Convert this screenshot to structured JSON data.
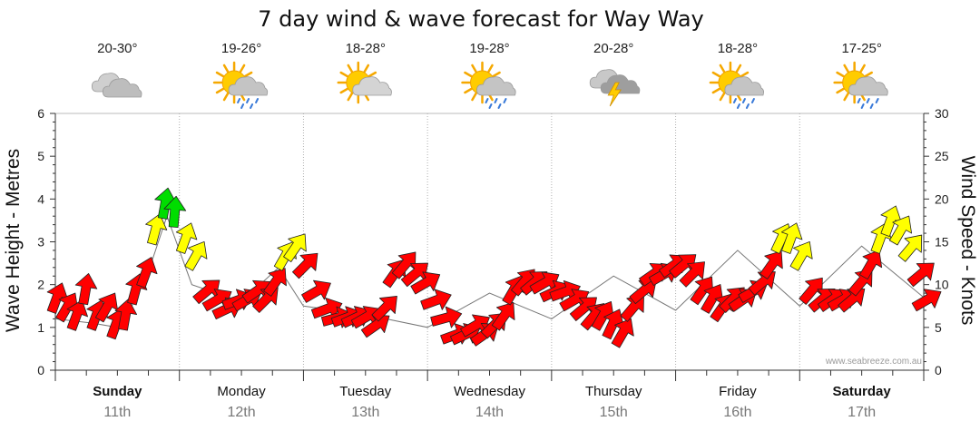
{
  "chart_data": {
    "type": "line",
    "title": "7 day wind & wave forecast for Way Way",
    "ylabel_left": "Wave Height - Metres",
    "ylabel_right": "Wind Speed - Knots",
    "ylim_left": [
      0,
      6
    ],
    "ylim_right": [
      0,
      30
    ],
    "yticks_left": [
      "0",
      "1",
      "2",
      "3",
      "4",
      "5",
      "6"
    ],
    "yticks_right": [
      "0",
      "5",
      "10",
      "15",
      "20",
      "25",
      "30"
    ],
    "grid": true,
    "watermark": "www.seabreeze.com.au",
    "days": [
      {
        "name": "Sunday",
        "date": "11th",
        "bold": true,
        "temp": "20-30°",
        "icon": "cloudy-icon"
      },
      {
        "name": "Monday",
        "date": "12th",
        "bold": false,
        "temp": "19-26°",
        "icon": "sun-rain-icon"
      },
      {
        "name": "Tuesday",
        "date": "13th",
        "bold": false,
        "temp": "18-28°",
        "icon": "partly-cloudy-icon"
      },
      {
        "name": "Wednesday",
        "date": "14th",
        "bold": false,
        "temp": "19-28°",
        "icon": "sun-rain-icon"
      },
      {
        "name": "Thursday",
        "date": "15th",
        "bold": false,
        "temp": "20-28°",
        "icon": "thunderstorm-icon"
      },
      {
        "name": "Friday",
        "date": "16th",
        "bold": false,
        "temp": "18-28°",
        "icon": "sun-rain-icon"
      },
      {
        "name": "Saturday",
        "date": "17th",
        "bold": true,
        "temp": "17-25°",
        "icon": "sun-rain-icon"
      }
    ],
    "series": [
      {
        "name": "Wind Speed",
        "units": "knots",
        "x_day": [
          0.0,
          0.08,
          0.16,
          0.24,
          0.32,
          0.4,
          0.48,
          0.56,
          0.64,
          0.72,
          0.8,
          0.88,
          0.96,
          1.04,
          1.12,
          1.2,
          1.28,
          1.36,
          1.44,
          1.52,
          1.6,
          1.68,
          1.76,
          1.84,
          1.92,
          2.0,
          2.08,
          2.16,
          2.24,
          2.32,
          2.4,
          2.48,
          2.56,
          2.64,
          2.72,
          2.8,
          2.88,
          2.96,
          3.04,
          3.12,
          3.2,
          3.28,
          3.36,
          3.44,
          3.52,
          3.6,
          3.68,
          3.76,
          3.84,
          3.92,
          4.0,
          4.08,
          4.16,
          4.24,
          4.32,
          4.4,
          4.48,
          4.56,
          4.64,
          4.72,
          4.8,
          4.88,
          4.96,
          5.04,
          5.12,
          5.2,
          5.28,
          5.36,
          5.44,
          5.52,
          5.6,
          5.68,
          5.76,
          5.84,
          5.92,
          6.0,
          6.08,
          6.16,
          6.24,
          6.32,
          6.4,
          6.48,
          6.56,
          6.64,
          6.72,
          6.8,
          6.88,
          6.96,
          7.0
        ],
        "speed": [
          8,
          7,
          6,
          9,
          6,
          7,
          5,
          6,
          9,
          11,
          16,
          19,
          18,
          15,
          13,
          9,
          8,
          7,
          8,
          8,
          9,
          8,
          10,
          13,
          14,
          12,
          9,
          7,
          6,
          6,
          6,
          6,
          5,
          7,
          11,
          12,
          11,
          10,
          8,
          6,
          4,
          4,
          5,
          4,
          5,
          6,
          9,
          10,
          10,
          10,
          9,
          9,
          8,
          7,
          6,
          6,
          5,
          4,
          7,
          9,
          11,
          11,
          12,
          12,
          11,
          9,
          8,
          7,
          8,
          8,
          9,
          10,
          12,
          15,
          15,
          13,
          9,
          8,
          8,
          8,
          8,
          10,
          12,
          15,
          17,
          16,
          14,
          11,
          8
        ],
        "direction_deg": [
          200,
          210,
          200,
          190,
          200,
          210,
          200,
          190,
          195,
          200,
          195,
          190,
          185,
          200,
          210,
          230,
          240,
          245,
          250,
          240,
          235,
          225,
          215,
          210,
          215,
          225,
          240,
          250,
          255,
          250,
          245,
          240,
          235,
          225,
          215,
          220,
          230,
          240,
          250,
          255,
          250,
          245,
          240,
          235,
          225,
          215,
          210,
          220,
          230,
          240,
          245,
          250,
          240,
          230,
          220,
          210,
          205,
          210,
          220,
          230,
          235,
          240,
          235,
          230,
          225,
          215,
          210,
          215,
          225,
          235,
          240,
          230,
          215,
          205,
          200,
          210,
          220,
          230,
          235,
          240,
          230,
          220,
          210,
          200,
          200,
          210,
          220,
          230,
          240
        ]
      },
      {
        "name": "Wave Height",
        "units": "m",
        "x_day": [
          0.0,
          0.3,
          0.5,
          0.6,
          0.75,
          0.9,
          1.1,
          1.5,
          1.8,
          2.0,
          2.5,
          3.0,
          3.5,
          4.0,
          4.5,
          5.0,
          5.5,
          6.0,
          6.5,
          7.0
        ],
        "height": [
          1.2,
          1.1,
          1.0,
          1.4,
          2.3,
          3.6,
          2.0,
          1.6,
          2.4,
          1.5,
          1.3,
          1.0,
          1.8,
          1.2,
          2.2,
          1.4,
          2.8,
          1.5,
          2.9,
          1.7
        ]
      }
    ],
    "color_scale": [
      {
        "max": 12,
        "color": "#ff0000"
      },
      {
        "max": 17,
        "color": "#ffff00"
      },
      {
        "max": 99,
        "color": "#00dd00"
      }
    ]
  }
}
